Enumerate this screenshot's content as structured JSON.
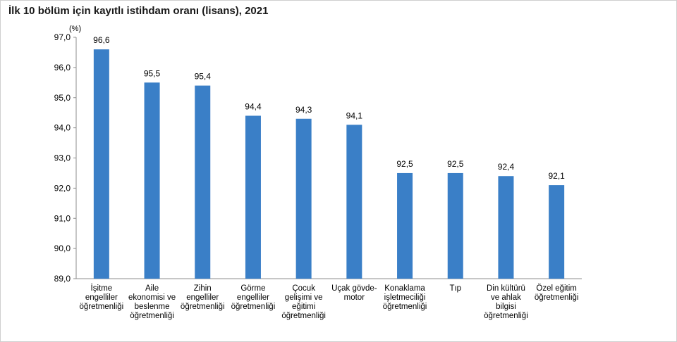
{
  "chart_data": {
    "type": "bar",
    "title": "İlk 10 bölüm için kayıtlı istihdam oranı (lisans), 2021",
    "unit_label": "(%)",
    "categories": [
      [
        "İşitme",
        "engelliler",
        "öğretmenliği"
      ],
      [
        "Aile",
        "ekonomisi ve",
        "beslenme",
        "öğretmenliği"
      ],
      [
        "Zihin",
        "engelliler",
        "öğretmenliği"
      ],
      [
        "Görme",
        "engelliler",
        "öğretmenliği"
      ],
      [
        "Çocuk",
        "gelişimi ve",
        "eğitimi",
        "öğretmenliği"
      ],
      [
        "Uçak gövde-",
        "motor"
      ],
      [
        "Konaklama",
        "işletmeciliği",
        "öğretmenliği"
      ],
      [
        "Tıp"
      ],
      [
        "Din kültürü",
        "ve ahlak",
        "bilgisi",
        "öğretmenliği"
      ],
      [
        "Özel eğitim",
        "öğretmenliği"
      ]
    ],
    "values": [
      96.6,
      95.5,
      95.4,
      94.4,
      94.3,
      94.1,
      92.5,
      92.5,
      92.4,
      92.1
    ],
    "data_labels": [
      "96,6",
      "95,5",
      "95,4",
      "94,4",
      "94,3",
      "94,1",
      "92,5",
      "92,5",
      "92,4",
      "92,1"
    ],
    "ylim": [
      89.0,
      97.0
    ],
    "yticks": [
      97.0,
      96.0,
      95.0,
      94.0,
      93.0,
      92.0,
      91.0,
      90.0,
      89.0
    ],
    "ytick_labels": [
      "97,0",
      "96,0",
      "95,0",
      "94,0",
      "93,0",
      "92,0",
      "91,0",
      "90,0",
      "89,0"
    ],
    "grid": false,
    "legend": "none",
    "bar_color": "#3a7fc7"
  }
}
